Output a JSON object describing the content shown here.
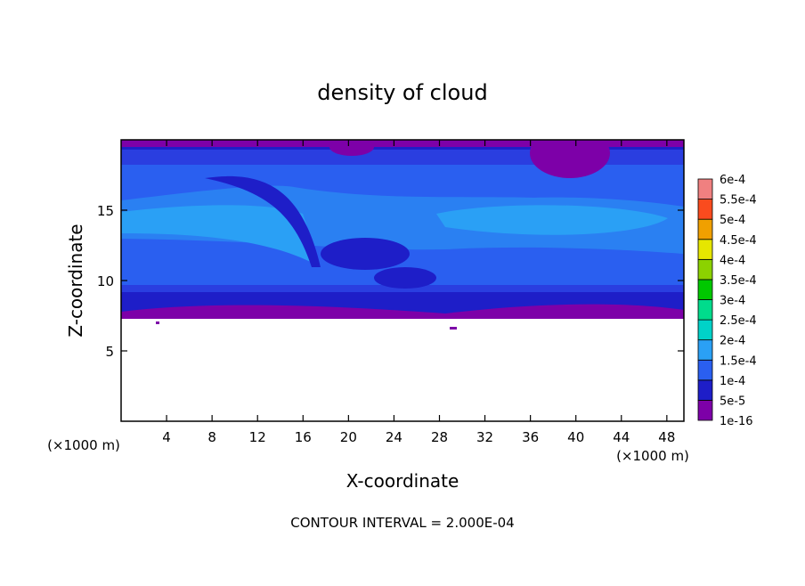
{
  "chart_data": {
    "type": "contour",
    "title": "density of cloud",
    "x_label": "X-coordinate",
    "y_label": "Z-coordinate",
    "x_unit": "(×1000 m)",
    "y_unit": "(×1000 m)",
    "xlim": [
      0,
      49.5
    ],
    "ylim": [
      0,
      20
    ],
    "xticks": [
      4,
      8,
      12,
      16,
      20,
      24,
      28,
      32,
      36,
      40,
      44,
      48
    ],
    "yticks": [
      5,
      10,
      15
    ],
    "colorbar": {
      "levels": [
        {
          "value": 1e-16,
          "label": "1e-16"
        },
        {
          "value": 5e-05,
          "label": "5e-5"
        },
        {
          "value": 0.0001,
          "label": "1e-4"
        },
        {
          "value": 0.00015,
          "label": "1.5e-4"
        },
        {
          "value": 0.0002,
          "label": "2e-4"
        },
        {
          "value": 0.00025,
          "label": "2.5e-4"
        },
        {
          "value": 0.0003,
          "label": "3e-4"
        },
        {
          "value": 0.00035,
          "label": "3.5e-4"
        },
        {
          "value": 0.0004,
          "label": "4e-4"
        },
        {
          "value": 0.00045,
          "label": "4.5e-4"
        },
        {
          "value": 0.0005,
          "label": "5e-4"
        },
        {
          "value": 0.00055,
          "label": "5.5e-4"
        },
        {
          "value": 0.0006,
          "label": "6e-4"
        }
      ],
      "colors": [
        "#7d00a8",
        "#1e1ec8",
        "#2a5ff0",
        "#2aa0f5",
        "#00d2c8",
        "#00dc8c",
        "#00c800",
        "#8cd200",
        "#e6e600",
        "#f0a000",
        "#fa4b1e",
        "#f08080"
      ]
    },
    "note": "CONTOUR INTERVAL = 2.000E-04"
  }
}
